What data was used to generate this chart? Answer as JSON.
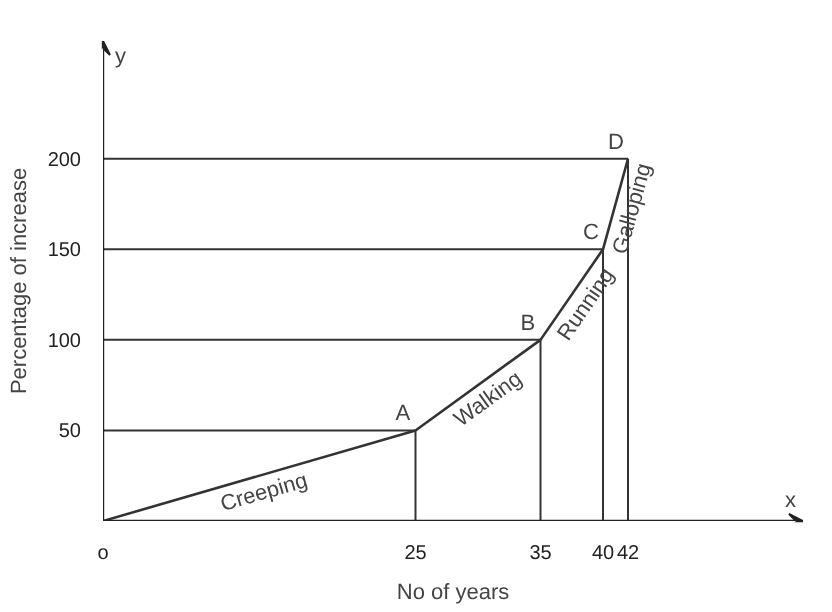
{
  "chart_data": {
    "type": "line",
    "xlabel": "No of years",
    "ylabel": "Percentage of increase",
    "x": [
      0,
      25,
      35,
      40,
      42
    ],
    "series": [
      {
        "color": "#333333",
        "values": [
          0,
          50,
          100,
          150,
          200
        ]
      }
    ],
    "xlim": [
      0,
      56
    ],
    "ylim": [
      0,
      265
    ],
    "xticks": [
      {
        "value": 0,
        "label": "o"
      },
      25,
      35,
      40,
      42
    ],
    "yticks": [
      50,
      100,
      150,
      200
    ],
    "grid": false,
    "marker": "none",
    "line_style": "solid",
    "ref_lines": [
      {
        "axis": "y",
        "value": 50
      },
      {
        "axis": "y",
        "value": 100
      },
      {
        "axis": "y",
        "value": 150
      },
      {
        "axis": "y",
        "value": 200
      },
      {
        "axis": "x",
        "value": 25
      },
      {
        "axis": "x",
        "value": 35
      },
      {
        "axis": "x",
        "value": 40
      },
      {
        "axis": "x",
        "value": 42
      }
    ],
    "annotations": [
      {
        "text": "A",
        "x": 25,
        "y": 50
      },
      {
        "text": "B",
        "x": 35,
        "y": 100
      },
      {
        "text": "C",
        "x": 40,
        "y": 150
      },
      {
        "text": "D",
        "x": 42,
        "y": 200
      },
      {
        "text": "Creeping",
        "x": 12.5,
        "y": 25
      },
      {
        "text": "Walking",
        "x": 30,
        "y": 75
      },
      {
        "text": "Running",
        "x": 37.5,
        "y": 125
      },
      {
        "text": "Galloping",
        "x": 41,
        "y": 175
      },
      "x",
      "y"
    ]
  }
}
